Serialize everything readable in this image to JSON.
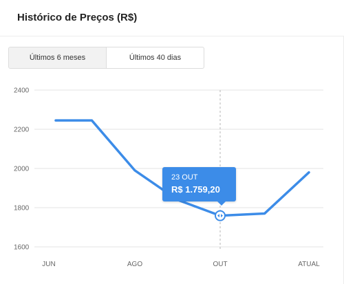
{
  "header": {
    "title": "Histórico de Preços (R$)"
  },
  "tabs": [
    {
      "label": "Últimos 6 meses",
      "active": true
    },
    {
      "label": "Últimos 40 dias",
      "active": false
    }
  ],
  "tooltip": {
    "date": "23 OUT",
    "value": "R$ 1.759,20"
  },
  "colors": {
    "line": "#3c8ce8",
    "grid": "#e3e3e3",
    "tooltip": "#3c8ce8"
  },
  "chart_data": {
    "type": "line",
    "title": "",
    "xlabel": "",
    "ylabel": "",
    "x_ticks": [
      "JUN",
      "AGO",
      "OUT",
      "ATUAL"
    ],
    "y_ticks": [
      1600,
      1800,
      2000,
      2200,
      2400
    ],
    "ylim": [
      1600,
      2400
    ],
    "grid": true,
    "series": [
      {
        "x": [
          0.08,
          0.5,
          1.0,
          1.5,
          2.0,
          2.5,
          3.0
        ],
        "values": [
          2245,
          2245,
          1990,
          1840,
          1759.2,
          1770,
          1980
        ]
      }
    ],
    "highlight": {
      "x": 2.0,
      "value": 1759.2,
      "label": "23 OUT"
    }
  }
}
